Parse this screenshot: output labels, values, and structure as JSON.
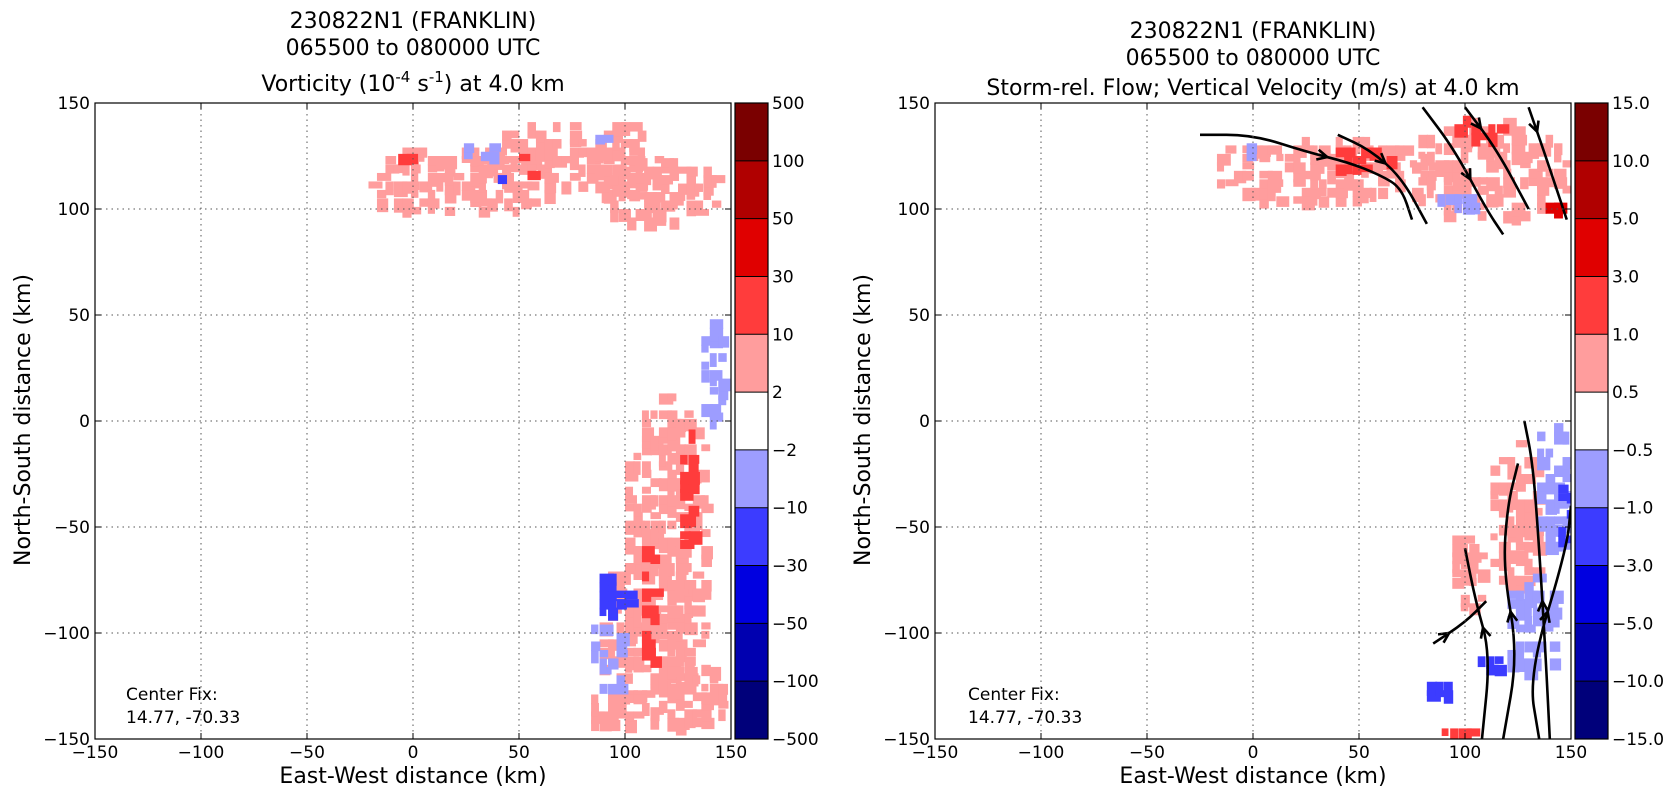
{
  "figure": {
    "left": {
      "title_line1": "230822N1 (FRANKLIN)",
      "title_line2": "065500 to 080000 UTC",
      "title_line3_pre": "Vorticity (10",
      "title_line3_sup1": "-4",
      "title_line3_mid": " s",
      "title_line3_sup2": "-1",
      "title_line3_post": ") at 4.0 km",
      "xlabel": "East-West distance (km)",
      "ylabel": "North-South distance (km)",
      "center_fix_label": "Center Fix:",
      "center_fix_value": "14.77, -70.33"
    },
    "right": {
      "title_line1": "230822N1 (FRANKLIN)",
      "title_line2": "065500 to 080000 UTC",
      "title_line3": "Storm-rel. Flow; Vertical Velocity (m/s) at 4.0 km",
      "xlabel": "East-West distance (km)",
      "ylabel": "North-South distance (km)",
      "center_fix_label": "Center Fix:",
      "center_fix_value": "14.77, -70.33"
    }
  },
  "chart_data": [
    {
      "type": "heatmap",
      "title": "230822N1 (FRANKLIN) 065500 to 080000 UTC Vorticity (10^-4 s^-1) at 4.0 km",
      "xlabel": "East-West distance (km)",
      "ylabel": "North-South distance (km)",
      "xlim": [
        -150,
        150
      ],
      "ylim": [
        -150,
        150
      ],
      "x_ticks": [
        "−150",
        "−100",
        "−50",
        "0",
        "50",
        "100",
        "150"
      ],
      "y_ticks": [
        "150",
        "100",
        "50",
        "0",
        "−50",
        "−100",
        "−150"
      ],
      "grid": true,
      "colorbar": {
        "tick_labels": [
          "500",
          "100",
          "50",
          "30",
          "10",
          "2",
          "−2",
          "−10",
          "−30",
          "−50",
          "−100",
          "−500"
        ],
        "colors": [
          "#7a0000",
          "#b00000",
          "#e00000",
          "#ff3c3c",
          "#ff9d9d",
          "#ffffff",
          "#9d9dff",
          "#3c3cff",
          "#0000e0",
          "#0000b0",
          "#00007a"
        ]
      },
      "regions": [
        {
          "level": 1,
          "shape": "blob",
          "cx": 20,
          "cy": 115,
          "rx": 45,
          "ry": 18
        },
        {
          "level": 1,
          "shape": "blob",
          "cx": 75,
          "cy": 125,
          "rx": 45,
          "ry": 20
        },
        {
          "level": 1,
          "shape": "blob",
          "cx": 115,
          "cy": 110,
          "rx": 30,
          "ry": 18
        },
        {
          "level": 2,
          "shape": "blob",
          "cx": -5,
          "cy": 126,
          "rx": 6,
          "ry": 4
        },
        {
          "level": 2,
          "shape": "blob",
          "cx": 50,
          "cy": 120,
          "rx": 8,
          "ry": 6
        },
        {
          "level": -1,
          "shape": "blob",
          "cx": 30,
          "cy": 128,
          "rx": 10,
          "ry": 5
        },
        {
          "level": -1,
          "shape": "blob",
          "cx": 85,
          "cy": 135,
          "rx": 7,
          "ry": 4
        },
        {
          "level": -2,
          "shape": "blob",
          "cx": 40,
          "cy": 115,
          "rx": 4,
          "ry": 7
        },
        {
          "level": 1,
          "shape": "blob",
          "cx": 118,
          "cy": -40,
          "rx": 22,
          "ry": 55
        },
        {
          "level": 1,
          "shape": "blob",
          "cx": 112,
          "cy": -95,
          "rx": 28,
          "ry": 40
        },
        {
          "level": 1,
          "shape": "blob",
          "cx": 128,
          "cy": -130,
          "rx": 20,
          "ry": 18
        },
        {
          "level": 2,
          "shape": "blob",
          "cx": 128,
          "cy": -30,
          "rx": 6,
          "ry": 30
        },
        {
          "level": 2,
          "shape": "blob",
          "cx": 110,
          "cy": -85,
          "rx": 6,
          "ry": 30
        },
        {
          "level": -1,
          "shape": "blob",
          "cx": 140,
          "cy": 25,
          "rx": 8,
          "ry": 25
        },
        {
          "level": -1,
          "shape": "blob",
          "cx": 90,
          "cy": -110,
          "rx": 10,
          "ry": 18
        },
        {
          "level": -2,
          "shape": "blob",
          "cx": 93,
          "cy": -80,
          "rx": 9,
          "ry": 12
        },
        {
          "level": 1,
          "shape": "blob",
          "cx": 95,
          "cy": -135,
          "rx": 15,
          "ry": 10
        }
      ],
      "annotation": "Center Fix: 14.77, -70.33"
    },
    {
      "type": "heatmap",
      "title": "230822N1 (FRANKLIN) 065500 to 080000 UTC Storm-rel. Flow; Vertical Velocity (m/s) at 4.0 km",
      "xlabel": "East-West distance (km)",
      "ylabel": "North-South distance (km)",
      "xlim": [
        -150,
        150
      ],
      "ylim": [
        -150,
        150
      ],
      "x_ticks": [
        "−150",
        "−100",
        "−50",
        "0",
        "50",
        "100",
        "150"
      ],
      "y_ticks": [
        "150",
        "100",
        "50",
        "0",
        "−50",
        "−100",
        "−150"
      ],
      "grid": true,
      "colorbar": {
        "tick_labels": [
          "15.0",
          "10.0",
          "5.0",
          "3.0",
          "1.0",
          "0.5",
          "−0.5",
          "−1.0",
          "−3.0",
          "−5.0",
          "−10.0",
          "−15.0"
        ],
        "colors": [
          "#7a0000",
          "#b00000",
          "#e00000",
          "#ff3c3c",
          "#ff9d9d",
          "#ffffff",
          "#9d9dff",
          "#3c3cff",
          "#0000e0",
          "#0000b0",
          "#00007a"
        ]
      },
      "regions": [
        {
          "level": 1,
          "shape": "blob",
          "cx": 30,
          "cy": 120,
          "rx": 55,
          "ry": 18
        },
        {
          "level": 1,
          "shape": "blob",
          "cx": 110,
          "cy": 120,
          "rx": 40,
          "ry": 25
        },
        {
          "level": 2,
          "shape": "blob",
          "cx": 50,
          "cy": 125,
          "rx": 15,
          "ry": 8
        },
        {
          "level": 2,
          "shape": "blob",
          "cx": 105,
          "cy": 140,
          "rx": 10,
          "ry": 8
        },
        {
          "level": 3,
          "shape": "blob",
          "cx": 140,
          "cy": 100,
          "rx": 6,
          "ry": 5
        },
        {
          "level": -1,
          "shape": "blob",
          "cx": -5,
          "cy": 128,
          "rx": 6,
          "ry": 5
        },
        {
          "level": -1,
          "shape": "blob",
          "cx": 95,
          "cy": 105,
          "rx": 12,
          "ry": 6
        },
        {
          "level": 1,
          "shape": "blob",
          "cx": 122,
          "cy": -45,
          "rx": 14,
          "ry": 40
        },
        {
          "level": 1,
          "shape": "blob",
          "cx": 100,
          "cy": -70,
          "rx": 10,
          "ry": 20
        },
        {
          "level": 2,
          "shape": "blob",
          "cx": 95,
          "cy": -145,
          "rx": 10,
          "ry": 4
        },
        {
          "level": -1,
          "shape": "blob",
          "cx": 140,
          "cy": -30,
          "rx": 10,
          "ry": 35
        },
        {
          "level": -1,
          "shape": "blob",
          "cx": 130,
          "cy": -95,
          "rx": 14,
          "ry": 25
        },
        {
          "level": -2,
          "shape": "blob",
          "cx": 145,
          "cy": -40,
          "rx": 5,
          "ry": 18
        },
        {
          "level": -2,
          "shape": "blob",
          "cx": 110,
          "cy": -115,
          "rx": 8,
          "ry": 8
        },
        {
          "level": -2,
          "shape": "blob",
          "cx": 85,
          "cy": -125,
          "rx": 7,
          "ry": 6
        }
      ],
      "streamlines": [
        {
          "points": [
            [
              -25,
              135
            ],
            [
              0,
              135
            ],
            [
              25,
              127
            ],
            [
              45,
              122
            ],
            [
              60,
              116
            ],
            [
              70,
              110
            ],
            [
              75,
              95
            ]
          ]
        },
        {
          "points": [
            [
              40,
              135
            ],
            [
              55,
              128
            ],
            [
              70,
              115
            ],
            [
              82,
              93
            ]
          ]
        },
        {
          "points": [
            [
              80,
              148
            ],
            [
              95,
              128
            ],
            [
              110,
              100
            ],
            [
              118,
              88
            ]
          ]
        },
        {
          "points": [
            [
              100,
              148
            ],
            [
              115,
              128
            ],
            [
              130,
              100
            ]
          ]
        },
        {
          "points": [
            [
              130,
              148
            ],
            [
              138,
              125
            ],
            [
              148,
              95
            ]
          ]
        },
        {
          "points": [
            [
              140,
              -150
            ],
            [
              138,
              -110
            ],
            [
              135,
              -60
            ],
            [
              132,
              -20
            ],
            [
              128,
              0
            ]
          ]
        },
        {
          "points": [
            [
              118,
              -150
            ],
            [
              125,
              -110
            ],
            [
              118,
              -70
            ],
            [
              120,
              -40
            ],
            [
              125,
              -20
            ]
          ]
        },
        {
          "points": [
            [
              108,
              -150
            ],
            [
              112,
              -110
            ],
            [
              105,
              -85
            ],
            [
              100,
              -60
            ]
          ]
        },
        {
          "points": [
            [
              85,
              -105
            ],
            [
              100,
              -95
            ],
            [
              110,
              -85
            ]
          ]
        },
        {
          "points": [
            [
              135,
              -150
            ],
            [
              130,
              -120
            ],
            [
              148,
              -60
            ],
            [
              150,
              -40
            ]
          ]
        }
      ],
      "annotation": "Center Fix: 14.77, -70.33"
    }
  ]
}
